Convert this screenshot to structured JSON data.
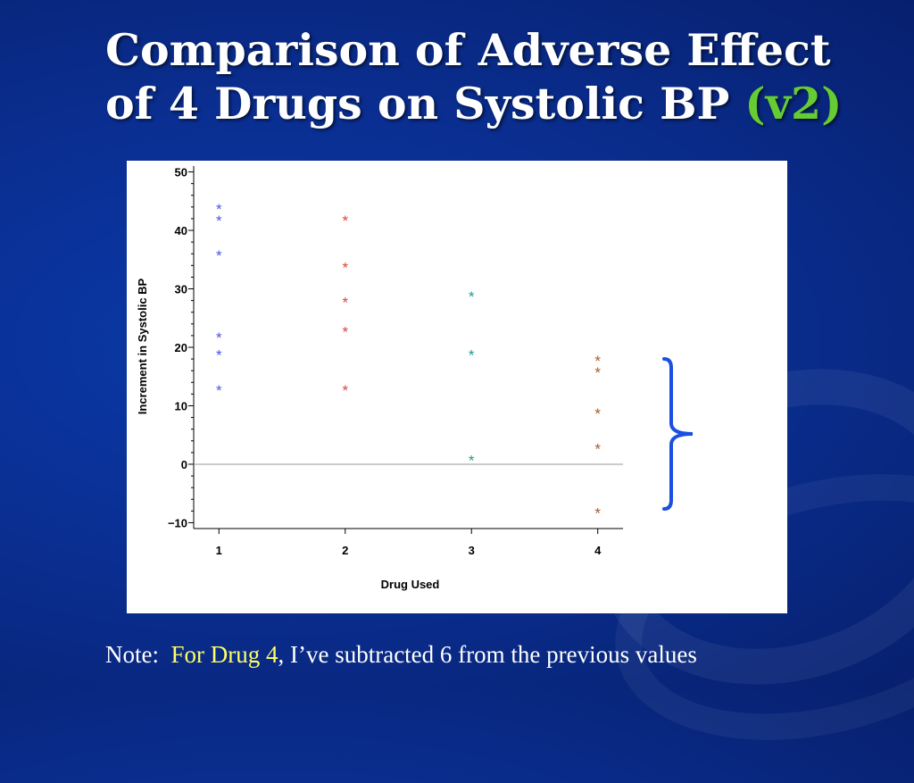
{
  "slide": {
    "title_line1": "Comparison of Adverse Effect",
    "title_line2": "of 4 Drugs on Systolic BP",
    "title_version": "(v2)",
    "note_prefix": "Note:",
    "note_highlight": "For Drug 4",
    "note_rest": ",  I’ve subtracted 6 from the previous values"
  },
  "colors": {
    "title": "#ffffff",
    "version": "#66cc33",
    "note_highlight": "#ffff66",
    "brace": "#1a4fe0",
    "series": [
      "#4b56e0",
      "#e0443a",
      "#1f9e8c",
      "#a65a2e"
    ]
  },
  "chart_data": {
    "type": "scatter",
    "xlabel": "Drug Used",
    "ylabel": "Increment in Systolic BP",
    "xlim": [
      0.8,
      4.2
    ],
    "ylim": [
      -11,
      51
    ],
    "x_ticks": [
      "1",
      "2",
      "3",
      "4"
    ],
    "y_ticks": [
      "50",
      "40",
      "30",
      "20",
      "10",
      "0",
      "−10"
    ],
    "y_tick_values": [
      50,
      40,
      30,
      20,
      10,
      0,
      -10
    ],
    "marker": "*",
    "reference_line_y": 0,
    "series": [
      {
        "x": 1,
        "values": [
          44,
          42,
          36,
          22,
          19,
          13
        ]
      },
      {
        "x": 2,
        "values": [
          42,
          34,
          28,
          23,
          13
        ]
      },
      {
        "x": 3,
        "values": [
          29,
          19,
          1
        ]
      },
      {
        "x": 4,
        "values": [
          18,
          16,
          9,
          3,
          -8
        ]
      }
    ]
  }
}
